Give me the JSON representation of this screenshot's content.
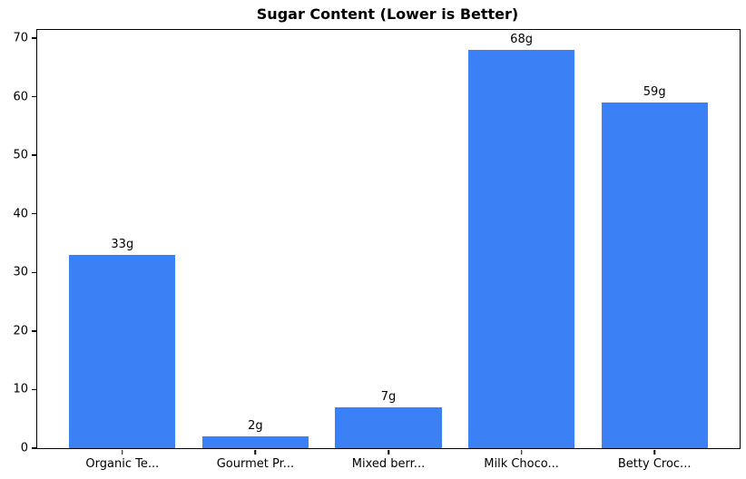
{
  "chart_data": {
    "type": "bar",
    "title": "Sugar Content (Lower is Better)",
    "categories": [
      "Organic Te...",
      "Gourmet Pr...",
      "Mixed berr...",
      "Milk Choco...",
      "Betty Croc..."
    ],
    "values": [
      33,
      2,
      7,
      68,
      59
    ],
    "bar_labels": [
      "33g",
      "2g",
      "7g",
      "68g",
      "59g"
    ],
    "yticks": [
      0,
      10,
      20,
      30,
      40,
      50,
      60,
      70
    ],
    "ylim": [
      0,
      71.4
    ],
    "xlabel": "",
    "ylabel": "",
    "grid": false,
    "legend_position": "none",
    "bar_color": "#3b80f5",
    "axis_color": "#000000",
    "background_color": "#ffffff"
  }
}
